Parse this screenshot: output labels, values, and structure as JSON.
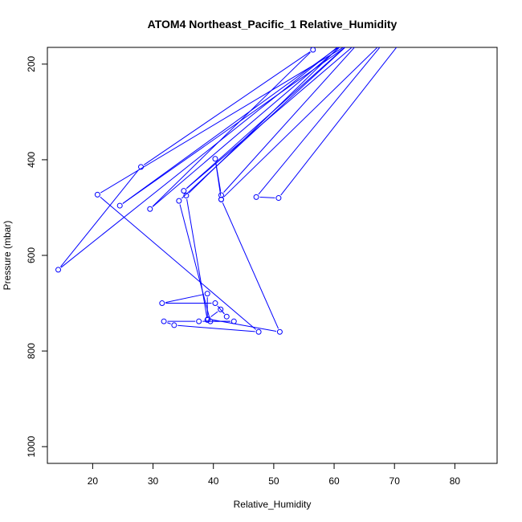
{
  "chart_data": {
    "type": "line",
    "title": "ATOM4 Northeast_Pacific_1 Relative_Humidity",
    "xlabel": "Relative_Humidity",
    "ylabel": "Pressure (mbar)",
    "xlim": [
      12.5,
      87
    ],
    "ylim": [
      1035,
      165
    ],
    "y_reversed": true,
    "x_ticks": [
      20,
      30,
      40,
      50,
      60,
      70,
      80
    ],
    "y_ticks": [
      200,
      400,
      600,
      800,
      1000
    ],
    "grid": false,
    "legend": "none",
    "series": [
      {
        "color": "#0000ff",
        "marker": "open-circle",
        "points": [
          {
            "x": 72.5,
            "y": 130
          },
          {
            "x": 50.8,
            "y": 480
          },
          {
            "x": 47.1,
            "y": 478
          },
          {
            "x": 69.2,
            "y": 140
          },
          {
            "x": 41.3,
            "y": 483
          },
          {
            "x": 40.3,
            "y": 398
          },
          {
            "x": 41.3,
            "y": 474
          },
          {
            "x": 64.8,
            "y": 145
          },
          {
            "x": 35.1,
            "y": 465
          },
          {
            "x": 63.1,
            "y": 150
          },
          {
            "x": 34.3,
            "y": 486
          },
          {
            "x": 39.5,
            "y": 738
          },
          {
            "x": 43.4,
            "y": 738
          },
          {
            "x": 37.6,
            "y": 738
          },
          {
            "x": 31.8,
            "y": 738
          },
          {
            "x": 33.5,
            "y": 746
          },
          {
            "x": 47.5,
            "y": 760
          },
          {
            "x": 20.8,
            "y": 473
          },
          {
            "x": 63.5,
            "y": 150
          },
          {
            "x": 24.5,
            "y": 496
          },
          {
            "x": 62.3,
            "y": 150
          },
          {
            "x": 29.5,
            "y": 503
          },
          {
            "x": 56.5,
            "y": 170
          },
          {
            "x": 28.0,
            "y": 415
          },
          {
            "x": 14.3,
            "y": 630
          },
          {
            "x": 62.0,
            "y": 150
          },
          {
            "x": 35.5,
            "y": 475
          },
          {
            "x": 39.0,
            "y": 735
          },
          {
            "x": 39.0,
            "y": 680
          },
          {
            "x": 31.5,
            "y": 700
          },
          {
            "x": 40.3,
            "y": 700
          },
          {
            "x": 42.2,
            "y": 728
          },
          {
            "x": 41.2,
            "y": 713
          },
          {
            "x": 39.1,
            "y": 733
          },
          {
            "x": 51.0,
            "y": 760
          },
          {
            "x": 41.3,
            "y": 483
          }
        ]
      }
    ]
  }
}
